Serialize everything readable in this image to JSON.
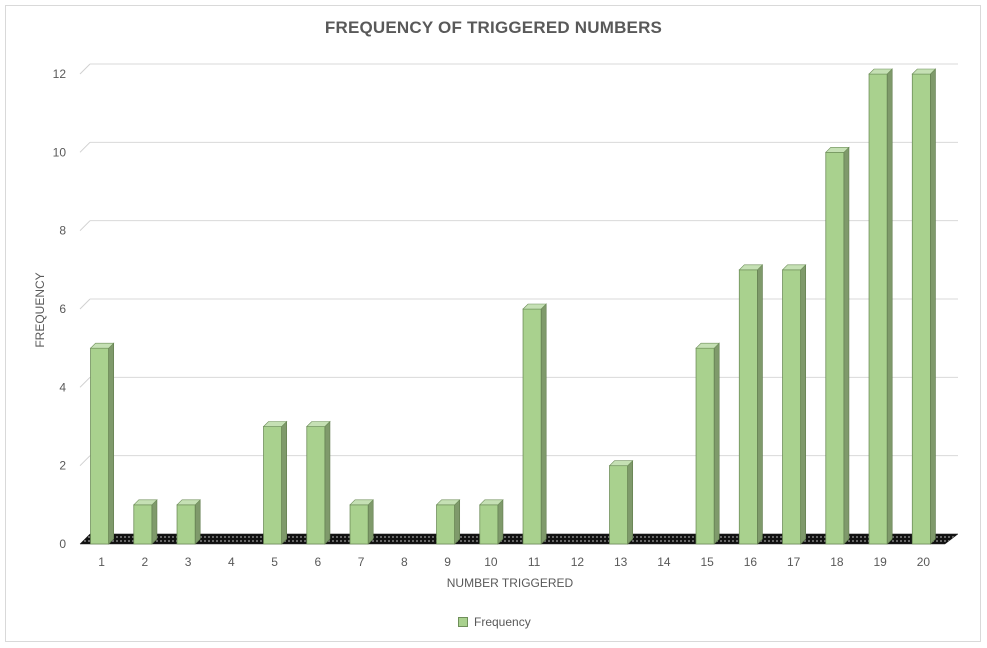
{
  "chart_data": {
    "type": "bar",
    "title": "FREQUENCY OF TRIGGERED  NUMBERS",
    "xlabel": "NUMBER TRIGGERED",
    "ylabel": "FREQUENCY",
    "categories": [
      "1",
      "2",
      "3",
      "4",
      "5",
      "6",
      "7",
      "8",
      "9",
      "10",
      "11",
      "12",
      "13",
      "14",
      "15",
      "16",
      "17",
      "18",
      "19",
      "20"
    ],
    "series": [
      {
        "name": "Frequency",
        "values": [
          5,
          1,
          1,
          0,
          3,
          3,
          1,
          0,
          1,
          1,
          6,
          0,
          2,
          0,
          5,
          7,
          7,
          10,
          12,
          12
        ]
      }
    ],
    "ylim": [
      0,
      12
    ],
    "yticks": [
      "0",
      "2",
      "4",
      "6",
      "8",
      "10",
      "12"
    ],
    "grid": true,
    "legend_position": "bottom",
    "colors": {
      "bar_front": "#a9d18e",
      "bar_side": "#7f9a6b",
      "bar_top": "#c5e0b4",
      "floor": "#111111"
    }
  }
}
